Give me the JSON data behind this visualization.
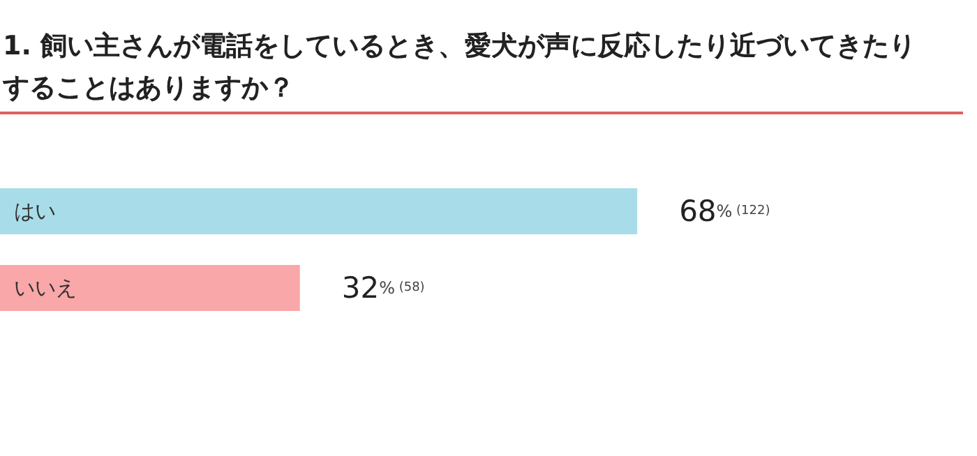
{
  "chart_data": {
    "type": "bar",
    "orientation": "horizontal",
    "title": "1. 飼い主さんが電話をしているとき、愛犬が声に反応したり近づいてきたりすることはありますか？",
    "categories": [
      "はい",
      "いいえ"
    ],
    "values": [
      68,
      32
    ],
    "colors": [
      "#a8dce8",
      "#f9a7a9"
    ],
    "value_labels": [
      "68% (122)",
      "32% (58)"
    ],
    "tick_labels": "y",
    "grid": false
  }
}
